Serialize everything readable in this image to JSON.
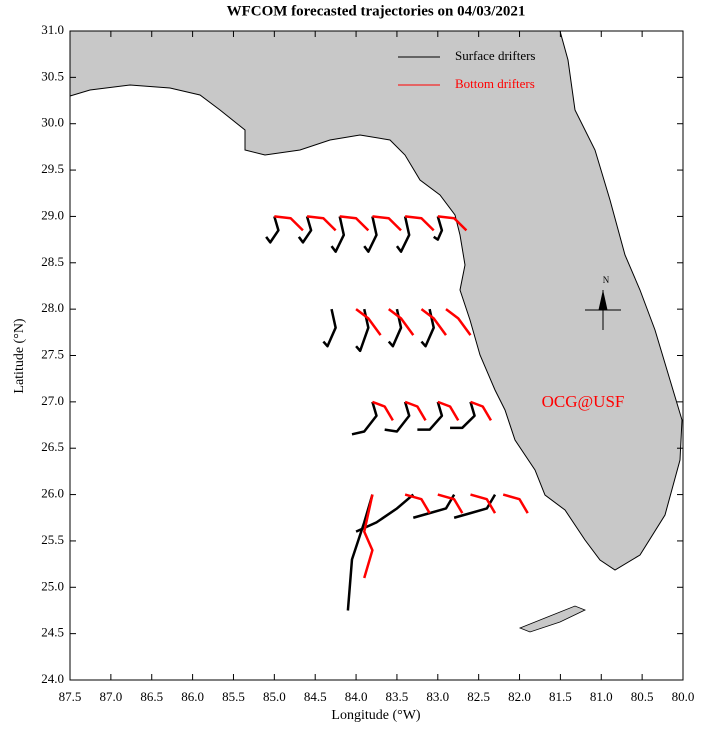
{
  "chart_data": {
    "type": "line",
    "title": "WFCOM forecasted trajectories on 04/03/2021",
    "x_label": "Longitude (°W)",
    "y_label": "Latitude (°N)",
    "annotation": "OCG@USF",
    "compass_label": "N",
    "xlim": [
      87.5,
      80
    ],
    "ylim": [
      24,
      31
    ],
    "xticks": [
      87.5,
      {
        "value": 87,
        "label": "87.0"
      },
      86.5,
      {
        "value": 86,
        "label": "86.0"
      },
      85.5,
      {
        "value": 85,
        "label": "85.0"
      },
      84.5,
      {
        "value": 84,
        "label": "84.0"
      },
      83.5,
      {
        "value": 83,
        "label": "83.0"
      },
      82.5,
      {
        "value": 82,
        "label": "82.0"
      },
      81.5,
      {
        "value": 81,
        "label": "81.0"
      },
      80.5,
      {
        "value": 80,
        "label": "80.0"
      }
    ],
    "yticks": [
      {
        "value": 24,
        "label": "24.0"
      },
      24.5,
      {
        "value": 25,
        "label": "25.0"
      },
      25.5,
      {
        "value": 26,
        "label": "26.0"
      },
      26.5,
      {
        "value": 27,
        "label": "27.0"
      },
      27.5,
      {
        "value": 28,
        "label": "28.0"
      },
      28.5,
      {
        "value": 29,
        "label": "29.0"
      },
      29.5,
      {
        "value": 30,
        "label": "30.0"
      },
      30.5,
      {
        "value": 31,
        "label": "31.0"
      }
    ],
    "legend_position": "upper right",
    "series": [
      {
        "name": "Surface drifters",
        "color": "#000000",
        "x": [
          85.0,
          84.95,
          85.05,
          85.1,
          null,
          84.6,
          84.55,
          84.65,
          84.7,
          null,
          84.2,
          84.15,
          84.25,
          84.3,
          null,
          83.8,
          83.75,
          83.85,
          83.9,
          null,
          83.4,
          83.35,
          83.45,
          83.5,
          null,
          83.0,
          82.95,
          83.0,
          83.05,
          null,
          84.3,
          84.25,
          84.35,
          84.4,
          null,
          83.9,
          83.85,
          83.95,
          84.0,
          null,
          83.5,
          83.45,
          83.55,
          83.6,
          null,
          83.1,
          83.05,
          83.15,
          83.2,
          null,
          83.8,
          83.75,
          83.9,
          84.05,
          null,
          83.4,
          83.35,
          83.5,
          83.65,
          null,
          83.0,
          82.95,
          83.1,
          83.25,
          null,
          82.6,
          82.55,
          82.7,
          82.85,
          null,
          83.8,
          83.9,
          84.05,
          84.1,
          null,
          83.3,
          83.5,
          83.75,
          84.0,
          null,
          82.8,
          82.9,
          83.1,
          83.3,
          null,
          82.3,
          82.4,
          82.6,
          82.8
        ],
        "values": [
          29.0,
          28.85,
          28.72,
          28.78,
          null,
          29.0,
          28.85,
          28.72,
          28.78,
          null,
          29.0,
          28.8,
          28.62,
          28.68,
          null,
          29.0,
          28.8,
          28.62,
          28.68,
          null,
          29.0,
          28.8,
          28.62,
          28.68,
          null,
          29.0,
          28.85,
          28.75,
          28.78,
          null,
          28.0,
          27.8,
          27.6,
          27.65,
          null,
          28.0,
          27.8,
          27.55,
          27.6,
          null,
          28.0,
          27.8,
          27.6,
          27.65,
          null,
          28.0,
          27.8,
          27.6,
          27.65,
          null,
          27.0,
          26.85,
          26.68,
          26.65,
          null,
          27.0,
          26.85,
          26.68,
          26.7,
          null,
          27.0,
          26.85,
          26.7,
          26.7,
          null,
          27.0,
          26.85,
          26.72,
          26.72,
          null,
          26.0,
          25.7,
          25.3,
          24.75,
          null,
          26.0,
          25.85,
          25.7,
          25.6,
          null,
          26.0,
          25.85,
          25.8,
          25.75,
          null,
          26.0,
          25.85,
          25.8,
          25.75
        ]
      },
      {
        "name": "Bottom drifters",
        "color": "#ff0000",
        "x": [
          85.0,
          84.8,
          84.65,
          null,
          84.6,
          84.4,
          84.25,
          null,
          84.2,
          84.0,
          83.85,
          null,
          83.8,
          83.6,
          83.45,
          null,
          83.4,
          83.2,
          83.05,
          null,
          83.0,
          82.8,
          82.65,
          null,
          84.0,
          83.85,
          83.7,
          null,
          83.6,
          83.45,
          83.3,
          null,
          83.2,
          83.05,
          82.9,
          null,
          82.9,
          82.75,
          82.6,
          null,
          83.8,
          83.65,
          83.55,
          null,
          83.4,
          83.25,
          83.15,
          null,
          83.0,
          82.85,
          82.75,
          null,
          82.6,
          82.45,
          82.35,
          null,
          83.8,
          83.9,
          83.8,
          83.9,
          null,
          83.4,
          83.2,
          83.1,
          null,
          83.0,
          82.8,
          82.7,
          null,
          82.6,
          82.4,
          82.3,
          null,
          82.2,
          82.0,
          81.9
        ],
        "values": [
          29.0,
          28.98,
          28.85,
          null,
          29.0,
          28.98,
          28.85,
          null,
          29.0,
          28.98,
          28.85,
          null,
          29.0,
          28.98,
          28.85,
          null,
          29.0,
          28.98,
          28.85,
          null,
          29.0,
          28.98,
          28.85,
          null,
          28.0,
          27.9,
          27.72,
          null,
          28.0,
          27.9,
          27.72,
          null,
          28.0,
          27.9,
          27.72,
          null,
          28.0,
          27.9,
          27.72,
          null,
          27.0,
          26.95,
          26.8,
          null,
          27.0,
          26.95,
          26.8,
          null,
          27.0,
          26.95,
          26.8,
          null,
          27.0,
          26.95,
          26.8,
          null,
          26.0,
          25.6,
          25.4,
          25.1,
          null,
          26.0,
          25.95,
          25.8,
          null,
          26.0,
          25.95,
          25.8,
          null,
          26.0,
          25.95,
          25.8,
          null,
          26.0,
          25.95,
          25.8
        ]
      }
    ]
  }
}
